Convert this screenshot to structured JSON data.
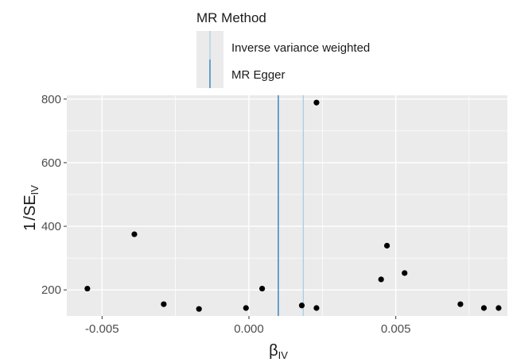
{
  "chart_data": {
    "type": "scatter",
    "legend": {
      "title": "MR Method",
      "placement": "top",
      "entries": [
        {
          "label": "Inverse variance weighted",
          "color": "#a6cee3"
        },
        {
          "label": "MR Egger",
          "color": "#1f78b4"
        }
      ]
    },
    "xlabel_main": "β",
    "xlabel_sub": "IV",
    "ylabel_prefix": "1",
    "ylabel_main": "SE",
    "ylabel_sub": "IV",
    "xlim": [
      -0.0062,
      0.0088
    ],
    "ylim": [
      118,
      812
    ],
    "x_ticks": [
      -0.005,
      0.0,
      0.005
    ],
    "x_tick_labels": [
      "-0.005",
      "0.000",
      "0.005"
    ],
    "y_ticks": [
      200,
      400,
      600,
      800
    ],
    "y_tick_labels": [
      "200",
      "400",
      "600",
      "800"
    ],
    "grid": true,
    "background": "#ebebeb",
    "point_color": "#000000",
    "vlines": [
      {
        "method": "MR Egger",
        "x": 0.001,
        "color": "#1f78b4"
      },
      {
        "method": "Inverse variance weighted",
        "x": 0.00185,
        "color": "#a6cee3"
      }
    ],
    "points": [
      {
        "x": -0.0055,
        "y": 204
      },
      {
        "x": -0.0039,
        "y": 375
      },
      {
        "x": -0.0029,
        "y": 155
      },
      {
        "x": -0.0017,
        "y": 140
      },
      {
        "x": -0.0001,
        "y": 143
      },
      {
        "x": 0.00045,
        "y": 204
      },
      {
        "x": 0.0018,
        "y": 151
      },
      {
        "x": 0.0023,
        "y": 143
      },
      {
        "x": 0.0023,
        "y": 789
      },
      {
        "x": 0.0045,
        "y": 233
      },
      {
        "x": 0.0047,
        "y": 339
      },
      {
        "x": 0.0053,
        "y": 253
      },
      {
        "x": 0.0072,
        "y": 155
      },
      {
        "x": 0.008,
        "y": 143
      },
      {
        "x": 0.0085,
        "y": 143
      }
    ]
  }
}
